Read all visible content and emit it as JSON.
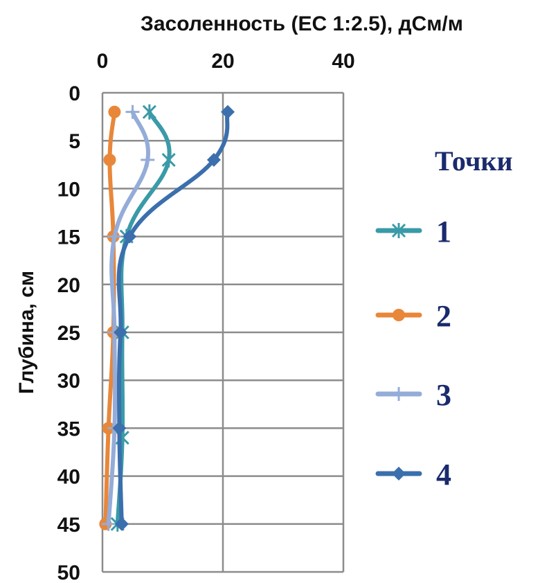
{
  "chart_data": {
    "type": "line",
    "title": "Засоленность (EC 1:2.5), дСм/м",
    "ylabel": "Глубина, см",
    "xlim": [
      0,
      40
    ],
    "ylim": [
      0,
      50
    ],
    "y_inverted": true,
    "x_axis_position": "top",
    "x_ticks": [
      "0",
      "20",
      "40"
    ],
    "y_ticks": [
      "0",
      "5",
      "10",
      "15",
      "20",
      "25",
      "30",
      "35",
      "40",
      "45",
      "50"
    ],
    "grid": true,
    "legend": {
      "title": "Точки",
      "position": "right"
    },
    "series": [
      {
        "name": "1",
        "marker": "star",
        "color": "#3a9aa8",
        "points": [
          {
            "x": 7.8,
            "y": 2
          },
          {
            "x": 11.0,
            "y": 7
          },
          {
            "x": 4.0,
            "y": 15
          },
          {
            "x": 3.3,
            "y": 25
          },
          {
            "x": 3.3,
            "y": 36
          },
          {
            "x": 2.5,
            "y": 45
          }
        ]
      },
      {
        "name": "2",
        "marker": "circle",
        "color": "#e8873a",
        "points": [
          {
            "x": 2.0,
            "y": 2
          },
          {
            "x": 1.2,
            "y": 7
          },
          {
            "x": 1.8,
            "y": 15
          },
          {
            "x": 1.8,
            "y": 25
          },
          {
            "x": 1.0,
            "y": 35
          },
          {
            "x": 0.5,
            "y": 45
          }
        ]
      },
      {
        "name": "3",
        "marker": "plus",
        "color": "#94acd8",
        "points": [
          {
            "x": 5.0,
            "y": 2
          },
          {
            "x": 7.5,
            "y": 7
          },
          {
            "x": 2.0,
            "y": 15
          },
          {
            "x": 2.0,
            "y": 25
          },
          {
            "x": 2.0,
            "y": 35
          },
          {
            "x": 1.0,
            "y": 45
          }
        ]
      },
      {
        "name": "4",
        "marker": "diamond",
        "color": "#3b6fad",
        "points": [
          {
            "x": 20.8,
            "y": 2
          },
          {
            "x": 18.5,
            "y": 7
          },
          {
            "x": 4.5,
            "y": 15
          },
          {
            "x": 3.0,
            "y": 25
          },
          {
            "x": 2.8,
            "y": 35
          },
          {
            "x": 3.2,
            "y": 45
          }
        ]
      }
    ]
  }
}
